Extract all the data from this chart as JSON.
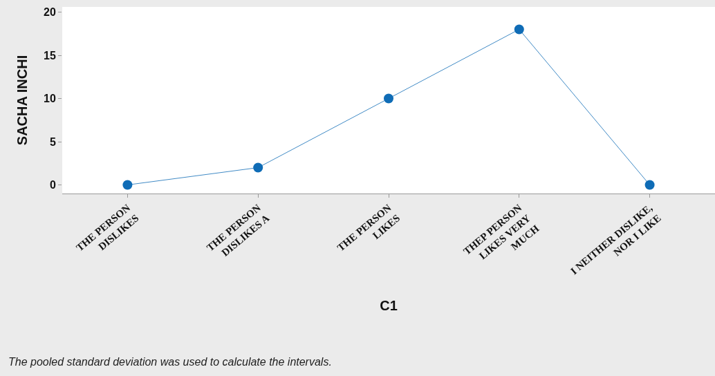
{
  "chart_data": {
    "type": "line",
    "xlabel": "C1",
    "ylabel": "SACHA INCHI",
    "categories": [
      "THE PERSON\nDISLIKES",
      "THE PERSON\nDISLIKES A",
      "THE PERSON\nLIKES",
      "THEP PERSON\nLIKES VERY\nMUCH",
      "I NEITHER DISLIKE,\nNOR I LIKE"
    ],
    "series": [
      {
        "color": "#0f6cb6",
        "values": [
          0,
          2,
          10,
          18,
          0
        ]
      }
    ],
    "ylim": [
      -1,
      20.6
    ],
    "yticks": [
      0,
      5,
      10,
      15,
      20
    ],
    "grid": false,
    "marker": "circle",
    "line_style": "solid",
    "annotations": [
      "The pooled standard deviation was used to calculate the intervals."
    ]
  }
}
